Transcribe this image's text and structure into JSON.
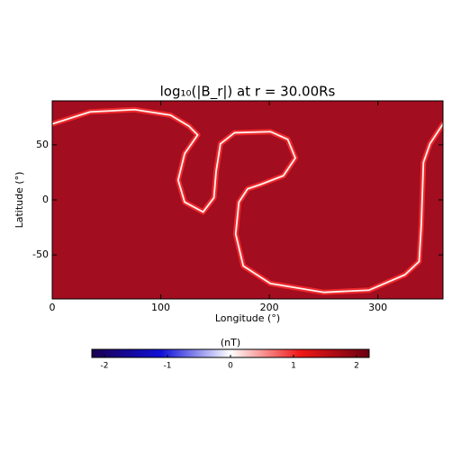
{
  "chart_data": {
    "type": "heatmap",
    "title": "log₁₀(|B_r|) at r = 30.00Rs",
    "x_label": "Longitude (°)",
    "y_label": "Latitude (°)",
    "xlim": [
      0,
      360
    ],
    "ylim": [
      -90,
      90
    ],
    "xticks": [
      0,
      100,
      200,
      300
    ],
    "yticks": [
      -50,
      0,
      50
    ],
    "color": "#a20d1f",
    "series": [
      {
        "color": "#fff4f0",
        "x": [
          0,
          35,
          76,
          109,
          126,
          134,
          122,
          116,
          122,
          139,
          149,
          151,
          155,
          168,
          201,
          217,
          224,
          213,
          192,
          180,
          172,
          169,
          176,
          201,
          250,
          292,
          325,
          338,
          340,
          342,
          348,
          360
        ],
        "values": [
          69,
          80,
          82,
          77,
          67,
          59,
          42,
          18,
          -2,
          -11,
          2,
          26,
          51,
          61,
          62,
          55,
          38,
          22,
          14,
          10,
          -2,
          -31,
          -60,
          -76,
          -84,
          -82,
          -68,
          -56,
          -23,
          34,
          51,
          69
        ]
      }
    ],
    "colorbar": {
      "label": "(nT)",
      "lim": [
        -2.2,
        2.2
      ],
      "ticks": [
        -2,
        -1,
        0,
        1,
        2
      ]
    }
  }
}
